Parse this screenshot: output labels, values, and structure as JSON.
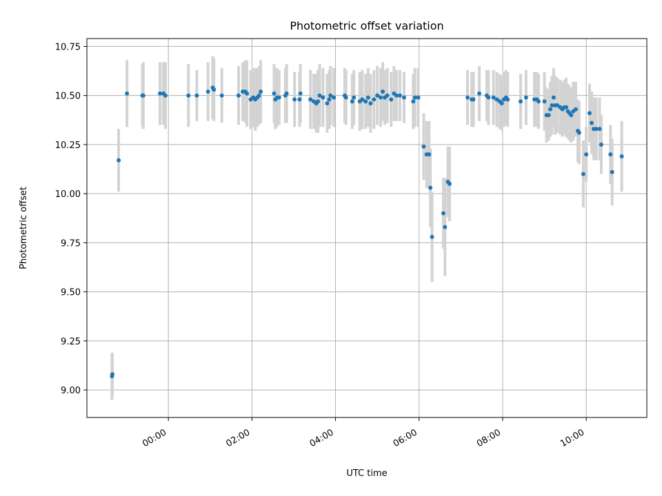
{
  "chart_data": {
    "type": "scatter",
    "title": "Photometric offset variation",
    "xlabel": "UTC time",
    "ylabel": "Photometric offset",
    "x_units": "hours UTC",
    "xlim": [
      -1.95,
      11.45
    ],
    "ylim": [
      8.86,
      10.79
    ],
    "grid": true,
    "xticks": [
      {
        "value": 0,
        "label": "00:00"
      },
      {
        "value": 2,
        "label": "02:00"
      },
      {
        "value": 4,
        "label": "04:00"
      },
      {
        "value": 6,
        "label": "06:00"
      },
      {
        "value": 8,
        "label": "08:00"
      },
      {
        "value": 10,
        "label": "10:00"
      }
    ],
    "yticks": [
      {
        "value": 9.0,
        "label": "9.00"
      },
      {
        "value": 9.25,
        "label": "9.25"
      },
      {
        "value": 9.5,
        "label": "9.50"
      },
      {
        "value": 9.75,
        "label": "9.75"
      },
      {
        "value": 10.0,
        "label": "10.00"
      },
      {
        "value": 10.25,
        "label": "10.25"
      },
      {
        "value": 10.5,
        "label": "10.50"
      },
      {
        "value": 10.75,
        "label": "10.75"
      }
    ],
    "colors": {
      "points": "#1f77b4",
      "errorbars": "#d3d3d3",
      "grid": "#b0b0b0"
    },
    "points": [
      [
        -1.35,
        9.07,
        0.12
      ],
      [
        -1.34,
        9.08,
        0.11
      ],
      [
        -1.19,
        10.17,
        0.16
      ],
      [
        -0.99,
        10.51,
        0.17
      ],
      [
        -0.62,
        10.5,
        0.16
      ],
      [
        -0.6,
        10.5,
        0.17
      ],
      [
        -0.2,
        10.51,
        0.16
      ],
      [
        -0.12,
        10.51,
        0.16
      ],
      [
        -0.07,
        10.5,
        0.17
      ],
      [
        0.48,
        10.5,
        0.16
      ],
      [
        0.68,
        10.5,
        0.13
      ],
      [
        0.95,
        10.52,
        0.15
      ],
      [
        1.06,
        10.54,
        0.16
      ],
      [
        1.09,
        10.53,
        0.16
      ],
      [
        1.28,
        10.5,
        0.14
      ],
      [
        1.68,
        10.5,
        0.15
      ],
      [
        1.78,
        10.52,
        0.15
      ],
      [
        1.84,
        10.52,
        0.16
      ],
      [
        1.88,
        10.51,
        0.17
      ],
      [
        1.97,
        10.48,
        0.15
      ],
      [
        2.03,
        10.49,
        0.15
      ],
      [
        2.08,
        10.48,
        0.16
      ],
      [
        2.13,
        10.49,
        0.15
      ],
      [
        2.17,
        10.5,
        0.15
      ],
      [
        2.21,
        10.52,
        0.16
      ],
      [
        2.53,
        10.51,
        0.15
      ],
      [
        2.56,
        10.48,
        0.15
      ],
      [
        2.6,
        10.49,
        0.15
      ],
      [
        2.65,
        10.49,
        0.14
      ],
      [
        2.8,
        10.5,
        0.14
      ],
      [
        2.83,
        10.51,
        0.15
      ],
      [
        3.02,
        10.48,
        0.14
      ],
      [
        3.14,
        10.48,
        0.14
      ],
      [
        3.16,
        10.51,
        0.15
      ],
      [
        3.4,
        10.48,
        0.15
      ],
      [
        3.48,
        10.47,
        0.14
      ],
      [
        3.54,
        10.46,
        0.15
      ],
      [
        3.58,
        10.47,
        0.16
      ],
      [
        3.62,
        10.5,
        0.16
      ],
      [
        3.7,
        10.49,
        0.15
      ],
      [
        3.8,
        10.46,
        0.15
      ],
      [
        3.85,
        10.48,
        0.15
      ],
      [
        3.88,
        10.5,
        0.15
      ],
      [
        3.96,
        10.49,
        0.15
      ],
      [
        4.22,
        10.5,
        0.14
      ],
      [
        4.25,
        10.49,
        0.14
      ],
      [
        4.4,
        10.47,
        0.14
      ],
      [
        4.44,
        10.49,
        0.14
      ],
      [
        4.58,
        10.47,
        0.15
      ],
      [
        4.64,
        10.48,
        0.15
      ],
      [
        4.72,
        10.47,
        0.14
      ],
      [
        4.78,
        10.49,
        0.15
      ],
      [
        4.84,
        10.46,
        0.15
      ],
      [
        4.92,
        10.48,
        0.15
      ],
      [
        5.0,
        10.5,
        0.15
      ],
      [
        5.08,
        10.49,
        0.15
      ],
      [
        5.13,
        10.52,
        0.15
      ],
      [
        5.18,
        10.49,
        0.14
      ],
      [
        5.24,
        10.5,
        0.14
      ],
      [
        5.33,
        10.48,
        0.14
      ],
      [
        5.4,
        10.51,
        0.14
      ],
      [
        5.46,
        10.5,
        0.13
      ],
      [
        5.54,
        10.5,
        0.13
      ],
      [
        5.64,
        10.49,
        0.13
      ],
      [
        5.86,
        10.47,
        0.14
      ],
      [
        5.9,
        10.49,
        0.15
      ],
      [
        5.98,
        10.49,
        0.15
      ],
      [
        6.11,
        10.24,
        0.17
      ],
      [
        6.18,
        10.2,
        0.17
      ],
      [
        6.24,
        10.2,
        0.17
      ],
      [
        6.27,
        10.03,
        0.2
      ],
      [
        6.31,
        9.78,
        0.23
      ],
      [
        6.58,
        9.9,
        0.18
      ],
      [
        6.62,
        9.83,
        0.25
      ],
      [
        6.69,
        10.06,
        0.18
      ],
      [
        6.73,
        10.05,
        0.19
      ],
      [
        7.16,
        10.49,
        0.14
      ],
      [
        7.26,
        10.48,
        0.14
      ],
      [
        7.3,
        10.48,
        0.14
      ],
      [
        7.44,
        10.51,
        0.14
      ],
      [
        7.62,
        10.5,
        0.13
      ],
      [
        7.66,
        10.49,
        0.14
      ],
      [
        7.78,
        10.49,
        0.14
      ],
      [
        7.86,
        10.48,
        0.14
      ],
      [
        7.93,
        10.47,
        0.14
      ],
      [
        7.98,
        10.46,
        0.14
      ],
      [
        8.03,
        10.48,
        0.14
      ],
      [
        8.08,
        10.49,
        0.14
      ],
      [
        8.12,
        10.48,
        0.14
      ],
      [
        8.43,
        10.47,
        0.14
      ],
      [
        8.56,
        10.49,
        0.14
      ],
      [
        8.76,
        10.48,
        0.14
      ],
      [
        8.82,
        10.48,
        0.14
      ],
      [
        8.86,
        10.47,
        0.14
      ],
      [
        9.0,
        10.47,
        0.15
      ],
      [
        9.05,
        10.4,
        0.14
      ],
      [
        9.1,
        10.4,
        0.13
      ],
      [
        9.14,
        10.43,
        0.14
      ],
      [
        9.18,
        10.45,
        0.15
      ],
      [
        9.22,
        10.49,
        0.15
      ],
      [
        9.26,
        10.45,
        0.15
      ],
      [
        9.31,
        10.45,
        0.14
      ],
      [
        9.38,
        10.44,
        0.14
      ],
      [
        9.43,
        10.43,
        0.14
      ],
      [
        9.48,
        10.44,
        0.14
      ],
      [
        9.52,
        10.44,
        0.15
      ],
      [
        9.56,
        10.42,
        0.14
      ],
      [
        9.6,
        10.41,
        0.14
      ],
      [
        9.64,
        10.4,
        0.14
      ],
      [
        9.69,
        10.42,
        0.15
      ],
      [
        9.75,
        10.43,
        0.14
      ],
      [
        9.8,
        10.32,
        0.16
      ],
      [
        9.83,
        10.31,
        0.16
      ],
      [
        9.93,
        10.1,
        0.17
      ],
      [
        10.0,
        10.2,
        0.14
      ],
      [
        10.08,
        10.41,
        0.15
      ],
      [
        10.13,
        10.36,
        0.16
      ],
      [
        10.18,
        10.33,
        0.16
      ],
      [
        10.24,
        10.33,
        0.16
      ],
      [
        10.32,
        10.33,
        0.16
      ],
      [
        10.36,
        10.25,
        0.15
      ],
      [
        10.58,
        10.2,
        0.15
      ],
      [
        10.62,
        10.11,
        0.17
      ],
      [
        10.85,
        10.19,
        0.18
      ]
    ]
  }
}
